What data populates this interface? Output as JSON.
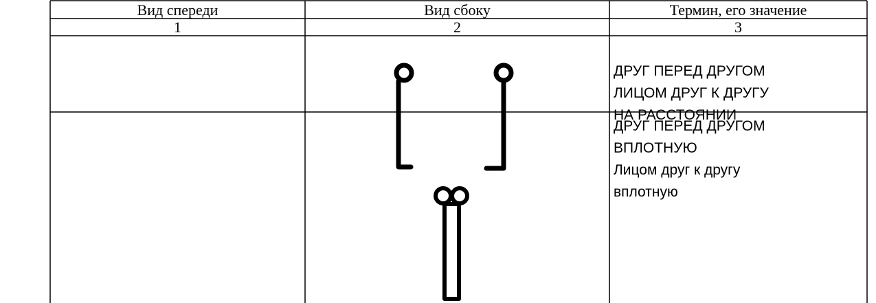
{
  "table": {
    "header": [
      "Вид спереди",
      "Вид сбоку",
      "Термин, его значение"
    ],
    "numbers": [
      "1",
      "2",
      "3"
    ],
    "rows": [
      {
        "term": [
          "ДРУГ ПЕРЕД ДРУГОМ",
          "ЛИЦОМ ДРУГ К ДРУГУ",
          "НА РАССТОЯНИИ"
        ]
      },
      {
        "term": [
          "ДРУГ ПЕРЕД ДРУГОМ",
          "ВПЛОТНУЮ",
          "Лицом друг к другу",
          "вплотную"
        ]
      }
    ]
  }
}
